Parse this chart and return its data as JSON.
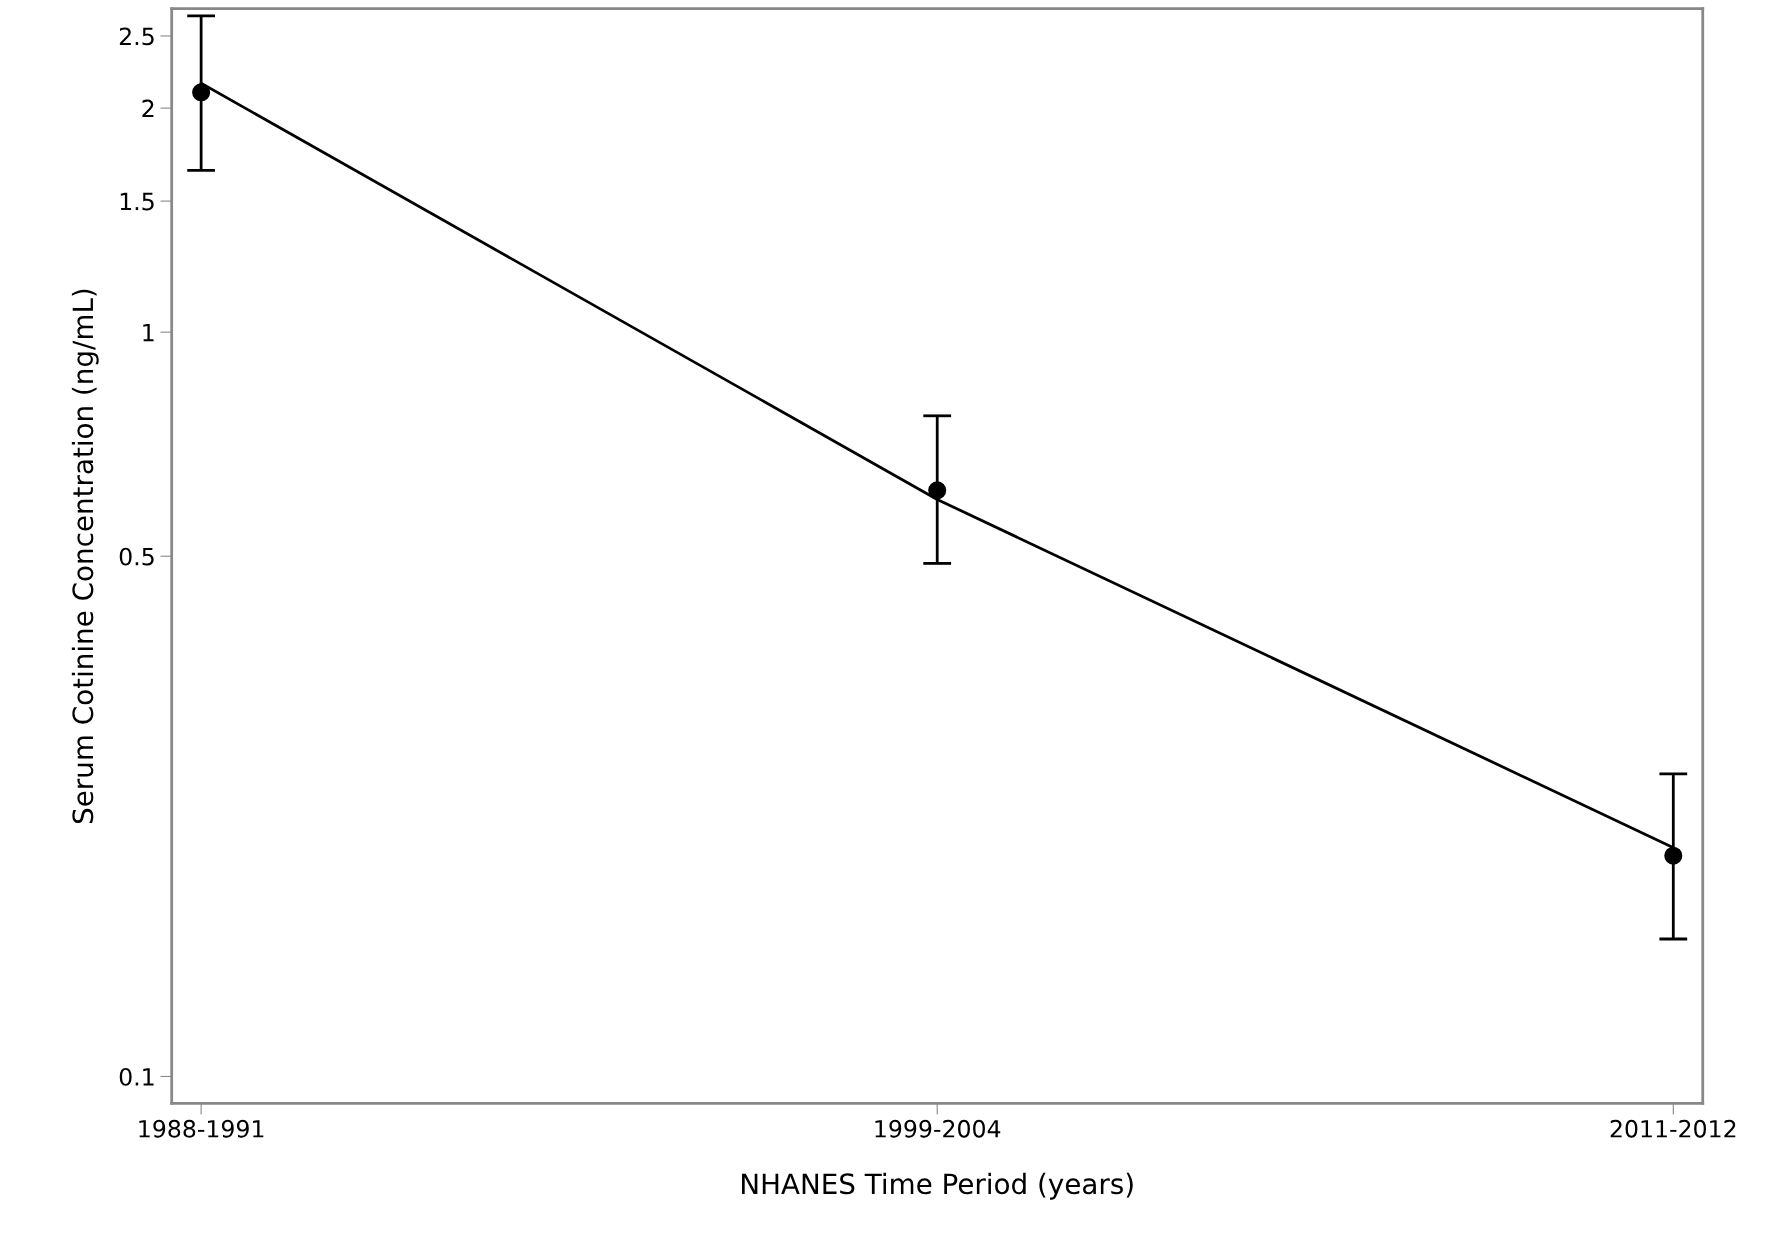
{
  "chart_data": {
    "type": "scatter",
    "xlabel": "NHANES Time Period (years)",
    "ylabel": "Serum Cotinine Concentration (ng/mL)",
    "log": "y",
    "ylim": [
      0.092,
      2.72
    ],
    "categories": [
      "1988-1991",
      "1999-2004",
      "2011-2012"
    ],
    "yticks": [
      0.1,
      0.5,
      1,
      1.5,
      2,
      2.5
    ],
    "grid": false,
    "legend": false,
    "series": [
      {
        "color": "#000000",
        "marker": "circle",
        "values": [
          2.1,
          0.613,
          0.198
        ],
        "errors": [
          [
            1.65,
            2.66
          ],
          [
            0.489,
            0.772
          ],
          [
            0.153,
            0.255
          ]
        ]
      },
      {
        "type": "line",
        "color": "#000000",
        "marker": "none",
        "line_style": "solid",
        "values": [
          2.16,
          0.596,
          0.203
        ]
      }
    ]
  }
}
